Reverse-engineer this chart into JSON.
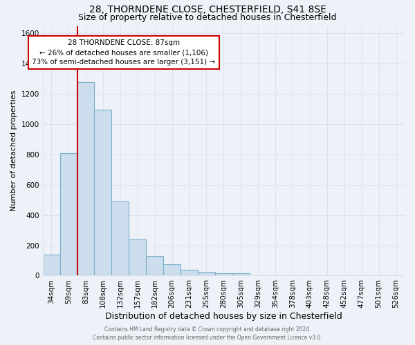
{
  "title": "28, THORNDENE CLOSE, CHESTERFIELD, S41 8SE",
  "subtitle": "Size of property relative to detached houses in Chesterfield",
  "xlabel": "Distribution of detached houses by size in Chesterfield",
  "ylabel": "Number of detached properties",
  "bar_labels": [
    "34sqm",
    "59sqm",
    "83sqm",
    "108sqm",
    "132sqm",
    "157sqm",
    "182sqm",
    "206sqm",
    "231sqm",
    "255sqm",
    "280sqm",
    "305sqm",
    "329sqm",
    "354sqm",
    "378sqm",
    "403sqm",
    "428sqm",
    "452sqm",
    "477sqm",
    "501sqm",
    "526sqm"
  ],
  "bar_values": [
    140,
    810,
    1280,
    1095,
    490,
    240,
    130,
    75,
    40,
    25,
    18,
    15,
    0,
    0,
    0,
    0,
    0,
    0,
    0,
    0,
    0
  ],
  "bar_color": "#ccdded",
  "bar_edge_color": "#7aafc9",
  "ylim": [
    0,
    1650
  ],
  "yticks": [
    0,
    200,
    400,
    600,
    800,
    1000,
    1200,
    1400,
    1600
  ],
  "red_line_index": 2,
  "annotation_title": "28 THORNDENE CLOSE: 87sqm",
  "annotation_line1": "← 26% of detached houses are smaller (1,106)",
  "annotation_line2": "73% of semi-detached houses are larger (3,151) →",
  "annotation_box_color": "#ffffff",
  "annotation_box_edge": "#cc0000",
  "red_line_color": "#cc0000",
  "footer1": "Contains HM Land Registry data © Crown copyright and database right 2024.",
  "footer2": "Contains public sector information licensed under the Open Government Licence v3.0.",
  "background_color": "#eef2f8",
  "plot_bg_color": "#eef2f8",
  "grid_color": "#d8e4f0",
  "title_fontsize": 10,
  "subtitle_fontsize": 9,
  "axis_label_fontsize": 9,
  "tick_fontsize": 7.5,
  "ylabel_fontsize": 8
}
